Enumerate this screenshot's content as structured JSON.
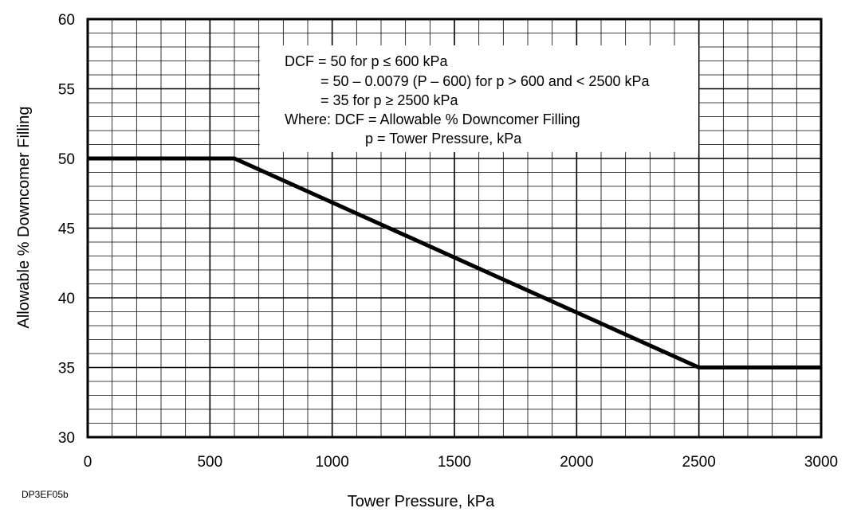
{
  "chart_data": {
    "type": "line",
    "xlabel": "Tower Pressure, kPa",
    "ylabel": "Allowable % Downcomer Filling",
    "xlim": [
      0,
      3000
    ],
    "ylim": [
      30,
      60
    ],
    "x_ticks": [
      "0",
      "500",
      "1000",
      "1500",
      "2000",
      "2500",
      "3000"
    ],
    "y_ticks": [
      "30",
      "35",
      "40",
      "45",
      "50",
      "55",
      "60"
    ],
    "x_major_step": 500,
    "x_minor_step": 100,
    "y_major_step": 5,
    "y_minor_step": 1,
    "grid": true,
    "series": [
      {
        "x": [
          0,
          600,
          2500,
          3000
        ],
        "y": [
          50,
          50,
          35,
          35
        ]
      }
    ],
    "annotation_lines": [
      "DCF = 50 for p ≤ 600 kPa",
      "= 50 – 0.0079 (P – 600) for p > 600 and < 2500 kPa",
      "= 35 for p ≥ 2500 kPa",
      "Where: DCF = Allowable % Downcomer Filling",
      "p = Tower Pressure, kPa"
    ]
  },
  "figure_code": "DP3EF05b"
}
